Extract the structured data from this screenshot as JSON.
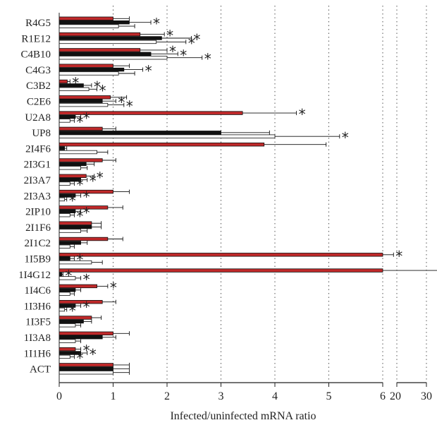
{
  "chart_data": {
    "type": "bar",
    "orientation": "horizontal",
    "xlabel": "Infected/uninfected mRNA ratio",
    "ylabel": "",
    "title": "",
    "xlim": [
      0,
      6
    ],
    "break_xlim": [
      20,
      30
    ],
    "xticks": [
      "0",
      "1",
      "2",
      "3",
      "4",
      "5",
      "6"
    ],
    "break_xticks": [
      "20",
      "30"
    ],
    "grid": "vertical-dotted",
    "colors": {
      "red": "#c0292a",
      "black": "#111111",
      "white": "#ffffff"
    },
    "series_order": [
      "red",
      "black",
      "white"
    ],
    "categories": [
      "R4G5",
      "R1E12",
      "C4B10",
      "C4G3",
      "C3B2",
      "C2E6",
      "U2A8",
      "UP8",
      "2I4F6",
      "2I3G1",
      "2I3A7",
      "2I3A3",
      "2IP10",
      "2I1F6",
      "2I1C2",
      "1I5B9",
      "1I4G12",
      "1I4C6",
      "1I3H6",
      "1I3F5",
      "1I3A8",
      "1I1H6",
      "ACT"
    ],
    "bars": [
      [
        {
          "v": 1.0,
          "e": 0.3
        },
        {
          "v": 1.3,
          "e": 0.4,
          "sig": true
        },
        {
          "v": 1.1,
          "e": 0.3
        }
      ],
      [
        {
          "v": 1.5,
          "e": 0.45,
          "sig": true
        },
        {
          "v": 1.9,
          "e": 0.55,
          "sig": true
        },
        {
          "v": 1.8,
          "e": 0.55,
          "sig": true
        }
      ],
      [
        {
          "v": 1.5,
          "e": 0.5,
          "sig": true
        },
        {
          "v": 1.7,
          "e": 0.5,
          "sig": true
        },
        {
          "v": 2.0,
          "e": 0.65,
          "sig": true
        }
      ],
      [
        {
          "v": 1.0,
          "e": 0.3
        },
        {
          "v": 1.2,
          "e": 0.35,
          "sig": true
        },
        {
          "v": 1.1,
          "e": 0.3
        }
      ],
      [
        {
          "v": 0.15,
          "e": 0.05,
          "sig": true
        },
        {
          "v": 0.45,
          "e": 0.15,
          "sig": true
        },
        {
          "v": 0.55,
          "e": 0.15,
          "sig": true
        }
      ],
      [
        {
          "v": 0.95,
          "e": 0.3
        },
        {
          "v": 0.8,
          "e": 0.25,
          "sig": true
        },
        {
          "v": 0.9,
          "e": 0.3,
          "sig": true
        }
      ],
      [
        {
          "v": 3.4,
          "e": 1.0,
          "sig": true
        },
        {
          "v": 0.3,
          "e": 0.1,
          "sig": true
        },
        {
          "v": 0.2,
          "e": 0.08,
          "sig": true
        }
      ],
      [
        {
          "v": 0.8,
          "e": 0.25
        },
        {
          "v": 3.0,
          "e": 0.9
        },
        {
          "v": 4.0,
          "e": 1.2,
          "sig": true
        }
      ],
      [
        {
          "v": 3.8,
          "e": 1.15
        },
        {
          "v": 0.1,
          "e": 0.04
        },
        {
          "v": 0.7,
          "e": 0.2
        }
      ],
      [
        {
          "v": 0.8,
          "e": 0.25
        },
        {
          "v": 0.5,
          "e": 0.15
        },
        {
          "v": 0.4,
          "e": 0.12
        }
      ],
      [
        {
          "v": 0.5,
          "e": 0.15,
          "sig": true
        },
        {
          "v": 0.4,
          "e": 0.12,
          "sig": true
        },
        {
          "v": 0.2,
          "e": 0.08,
          "sig": true
        }
      ],
      [
        {
          "v": 1.0,
          "e": 0.3
        },
        {
          "v": 0.3,
          "e": 0.1,
          "sig": true
        },
        {
          "v": 0.1,
          "e": 0.04,
          "sig": true
        }
      ],
      [
        {
          "v": 0.9,
          "e": 0.28
        },
        {
          "v": 0.3,
          "e": 0.1,
          "sig": true
        },
        {
          "v": 0.2,
          "e": 0.08,
          "sig": true
        }
      ],
      [
        {
          "v": 0.6,
          "e": 0.18
        },
        {
          "v": 0.6,
          "e": 0.18
        },
        {
          "v": 0.4,
          "e": 0.12
        }
      ],
      [
        {
          "v": 0.9,
          "e": 0.28
        },
        {
          "v": 0.4,
          "e": 0.12
        },
        {
          "v": 0.2,
          "e": 0.08
        }
      ],
      [
        {
          "v": 6.0,
          "e": 0.2,
          "sig": true
        },
        {
          "v": 0.2,
          "e": 0.08,
          "sig": true
        },
        {
          "v": 0.6,
          "e": 0.2
        }
      ],
      [
        {
          "v": 6.0,
          "e": 1.5,
          "sig": true
        },
        {
          "v": 0.05,
          "e": 0.02,
          "sig": true
        },
        {
          "v": 0.3,
          "e": 0.1,
          "sig": true
        }
      ],
      [
        {
          "v": 0.7,
          "e": 0.2,
          "sig": true
        },
        {
          "v": 0.3,
          "e": 0.1
        },
        {
          "v": 0.2,
          "e": 0.08
        }
      ],
      [
        {
          "v": 0.8,
          "e": 0.25
        },
        {
          "v": 0.3,
          "e": 0.1,
          "sig": true
        },
        {
          "v": 0.1,
          "e": 0.04,
          "sig": true
        }
      ],
      [
        {
          "v": 0.6,
          "e": 0.18
        },
        {
          "v": 0.45,
          "e": 0.15
        },
        {
          "v": 0.3,
          "e": 0.1
        }
      ],
      [
        {
          "v": 1.0,
          "e": 0.3
        },
        {
          "v": 0.8,
          "e": 0.25
        },
        {
          "v": 0.3,
          "e": 0.1
        }
      ],
      [
        {
          "v": 0.3,
          "e": 0.1,
          "sig": true
        },
        {
          "v": 0.4,
          "e": 0.12,
          "sig": true
        },
        {
          "v": 0.2,
          "e": 0.08,
          "sig": true
        }
      ],
      [
        {
          "v": 1.0,
          "e": 0.3
        },
        {
          "v": 1.0,
          "e": 0.3
        },
        {
          "v": 1.0,
          "e": 0.3
        }
      ]
    ],
    "significance_marker": "*"
  }
}
